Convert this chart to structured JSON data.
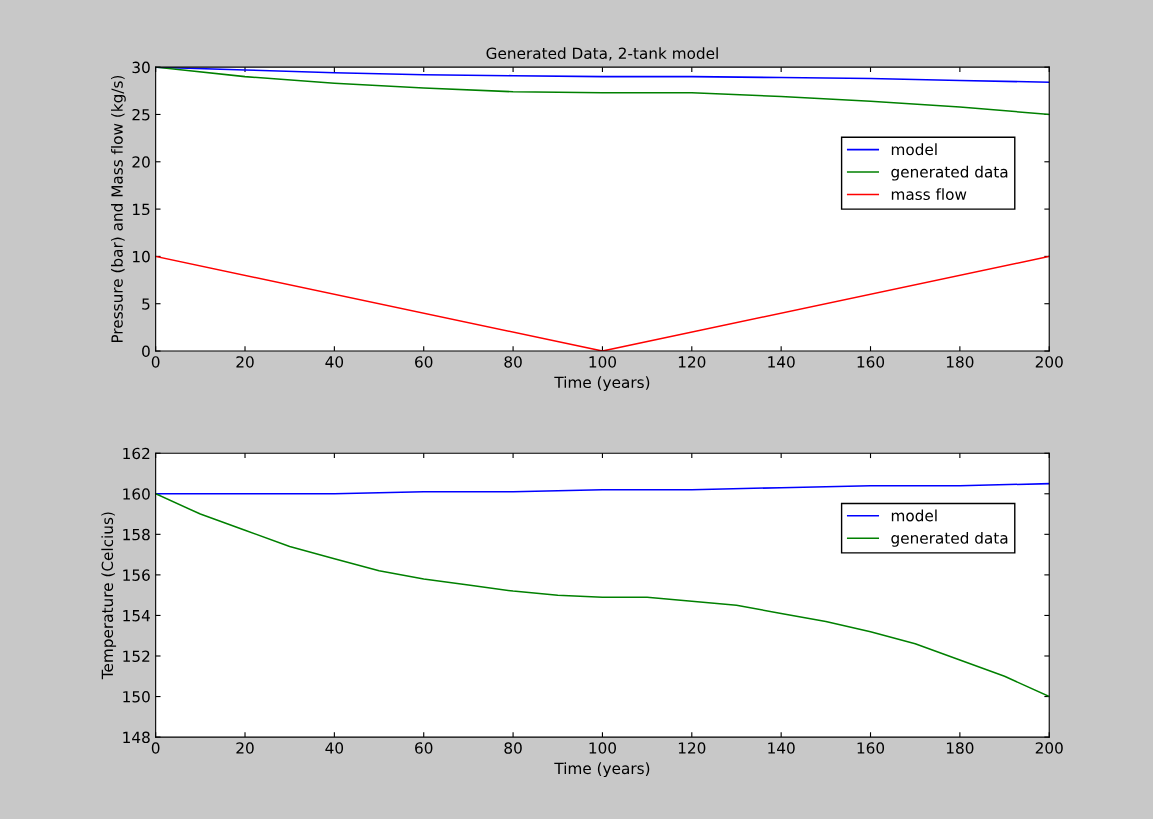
{
  "chart_data": [
    {
      "type": "line",
      "title": "Generated Data, 2-tank model",
      "xlabel": "Time (years)",
      "ylabel": "Pressure (bar) and Mass flow (kg/s)",
      "xlim": [
        0,
        200
      ],
      "xticks": [
        0,
        20,
        40,
        60,
        80,
        100,
        120,
        140,
        160,
        180,
        200
      ],
      "ylim": [
        0,
        30
      ],
      "yticks": [
        0,
        5,
        10,
        15,
        20,
        25,
        30
      ],
      "grid": false,
      "legend": "top right",
      "series": [
        {
          "name": "model",
          "color": "#0000ff",
          "x": [
            0,
            20,
            40,
            60,
            80,
            100,
            120,
            140,
            160,
            180,
            200
          ],
          "values": [
            30,
            29.7,
            29.4,
            29.2,
            29.1,
            29.0,
            29.0,
            28.9,
            28.8,
            28.6,
            28.4
          ]
        },
        {
          "name": "generated data",
          "color": "#008000",
          "x": [
            0,
            20,
            40,
            60,
            80,
            100,
            120,
            140,
            160,
            180,
            200
          ],
          "values": [
            30,
            29.0,
            28.3,
            27.8,
            27.4,
            27.3,
            27.3,
            26.9,
            26.4,
            25.8,
            25.0
          ]
        },
        {
          "name": "mass flow",
          "color": "#ff0000",
          "x": [
            0,
            100,
            200
          ],
          "values": [
            10,
            0,
            10
          ]
        }
      ]
    },
    {
      "type": "line",
      "xlabel": "Time (years)",
      "ylabel": "Temperature (Celcius)",
      "xlim": [
        0,
        200
      ],
      "xticks": [
        0,
        20,
        40,
        60,
        80,
        100,
        120,
        140,
        160,
        180,
        200
      ],
      "ylim": [
        148,
        162
      ],
      "yticks": [
        148,
        150,
        152,
        154,
        156,
        158,
        160,
        162
      ],
      "grid": false,
      "legend": "top right",
      "series": [
        {
          "name": "model",
          "color": "#0000ff",
          "x": [
            0,
            20,
            40,
            60,
            80,
            100,
            120,
            140,
            160,
            180,
            200
          ],
          "values": [
            160,
            160,
            160,
            160.1,
            160.1,
            160.2,
            160.2,
            160.3,
            160.4,
            160.4,
            160.5
          ]
        },
        {
          "name": "generated data",
          "color": "#008000",
          "x": [
            0,
            10,
            20,
            30,
            40,
            50,
            60,
            70,
            80,
            90,
            100,
            110,
            120,
            130,
            140,
            150,
            160,
            170,
            180,
            190,
            200
          ],
          "values": [
            160,
            159.0,
            158.2,
            157.4,
            156.8,
            156.2,
            155.8,
            155.5,
            155.2,
            155.0,
            154.9,
            154.9,
            154.7,
            154.5,
            154.1,
            153.7,
            153.2,
            152.6,
            151.8,
            151.0,
            150.0
          ]
        }
      ]
    }
  ]
}
